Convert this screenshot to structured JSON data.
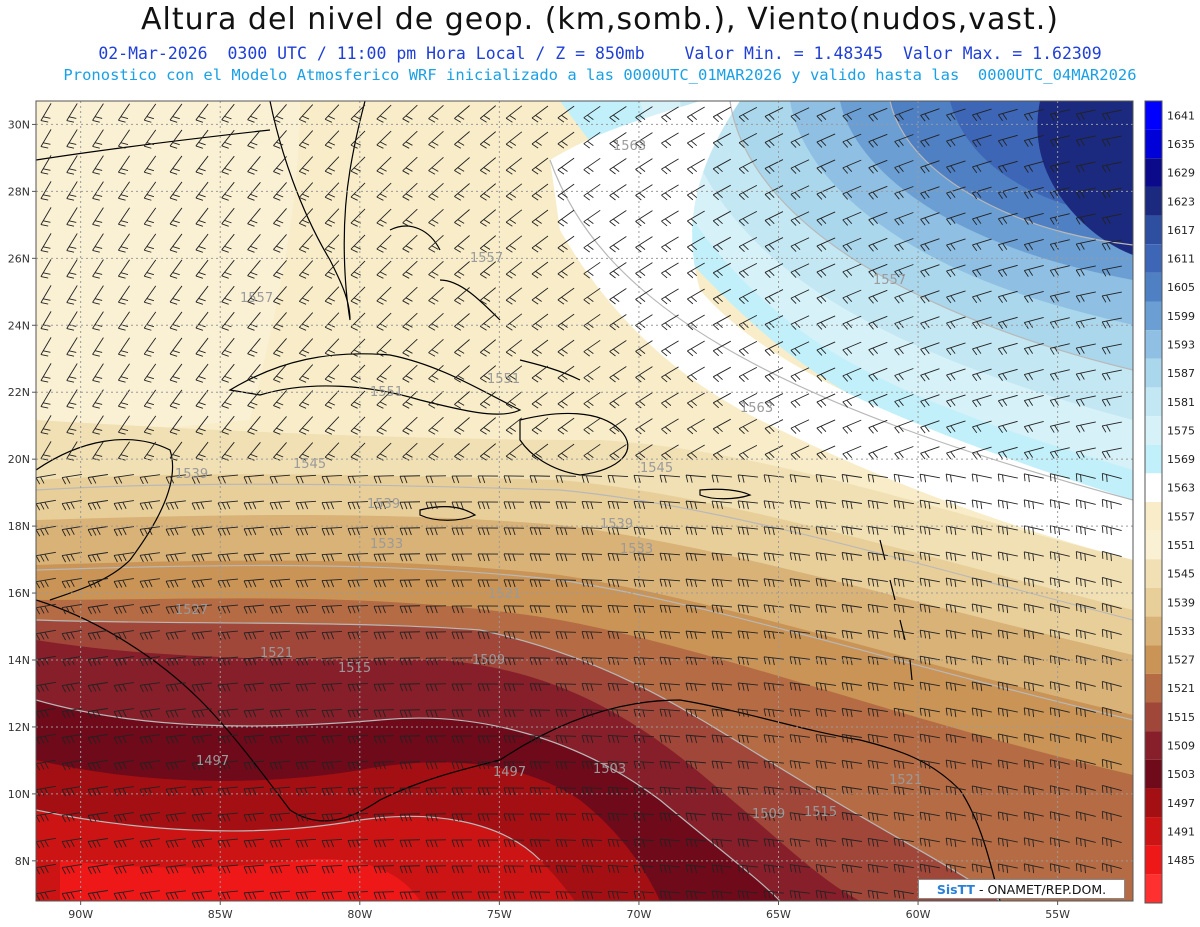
{
  "title": "Altura del nivel de geop. (km,somb.), Viento(nudos,vast.)",
  "subtitle_1": {
    "valid": "02-Mar-2026  0300 UTC / 11:00 pm Hora Local / Z = 850mb",
    "min": "Valor Min. = 1.48345",
    "max": "Valor Max. = 1.62309"
  },
  "subtitle_2": "Pronostico con el Modelo Atmosferico WRF inicializado a las 0000UTC_01MAR2026 y valido hasta las  0000UTC_04MAR2026",
  "axes": {
    "lat_labels": [
      "30N",
      "28N",
      "26N",
      "24N",
      "22N",
      "20N",
      "18N",
      "16N",
      "14N",
      "12N",
      "10N",
      "8N"
    ],
    "lon_labels": [
      "90W",
      "85W",
      "80W",
      "75W",
      "70W",
      "65W",
      "60W",
      "55W"
    ],
    "lat_values": [
      30,
      28,
      26,
      24,
      22,
      20,
      18,
      16,
      14,
      12,
      10,
      8
    ],
    "lon_values": [
      -90,
      -85,
      -80,
      -75,
      -70,
      -65,
      -60,
      -55
    ]
  },
  "colorbar": {
    "levels": [
      {
        "label": "1641",
        "color": "#0000ff"
      },
      {
        "label": "1635",
        "color": "#0000d8"
      },
      {
        "label": "1629",
        "color": "#0a0a8a"
      },
      {
        "label": "1623",
        "color": "#1b2a7e"
      },
      {
        "label": "1617",
        "color": "#2e4ea0"
      },
      {
        "label": "1611",
        "color": "#3e66b6"
      },
      {
        "label": "1605",
        "color": "#4f80c4"
      },
      {
        "label": "1599",
        "color": "#6b9fd3"
      },
      {
        "label": "1593",
        "color": "#8fbfe2"
      },
      {
        "label": "1587",
        "color": "#aad7ec"
      },
      {
        "label": "1581",
        "color": "#c4e8f3"
      },
      {
        "label": "1575",
        "color": "#d6f1f8"
      },
      {
        "label": "1569",
        "color": "#c2f0fa"
      },
      {
        "label": "1563",
        "color": "#ffffff"
      },
      {
        "label": "1557",
        "color": "#f8edc8"
      },
      {
        "label": "1551",
        "color": "#faf0d4"
      },
      {
        "label": "1545",
        "color": "#f0e0b4"
      },
      {
        "label": "1539",
        "color": "#e8cf9a"
      },
      {
        "label": "1533",
        "color": "#d9b277"
      },
      {
        "label": "1527",
        "color": "#c99456"
      },
      {
        "label": "1521",
        "color": "#b56c44"
      },
      {
        "label": "1515",
        "color": "#a0473a"
      },
      {
        "label": "1509",
        "color": "#861f2a"
      },
      {
        "label": "1503",
        "color": "#6e0a1a"
      },
      {
        "label": "1497",
        "color": "#a40f14"
      },
      {
        "label": "1491",
        "color": "#cc1414"
      },
      {
        "label": "1485",
        "color": "#ee1818"
      },
      {
        "label": "",
        "color": "#ff3030"
      }
    ]
  },
  "contour_labels": [
    "1563",
    "1557",
    "1557",
    "1557",
    "1551",
    "1551",
    "1563",
    "1545",
    "1539",
    "1539",
    "1545",
    "1539",
    "1533",
    "1533",
    "1527",
    "1521",
    "1521",
    "1515",
    "1509",
    "1497",
    "1497",
    "1503",
    "1509",
    "1515",
    "1521"
  ],
  "credit": {
    "logo": "SisTT",
    "text": "- ONAMET/REP.DOM."
  },
  "colors": {
    "grid": "#9a9a9a",
    "coast": "#000000",
    "barb": "#222222",
    "title": "#111111",
    "subtitle_1": "#1f3fd6",
    "subtitle_2": "#1aa0e6"
  }
}
